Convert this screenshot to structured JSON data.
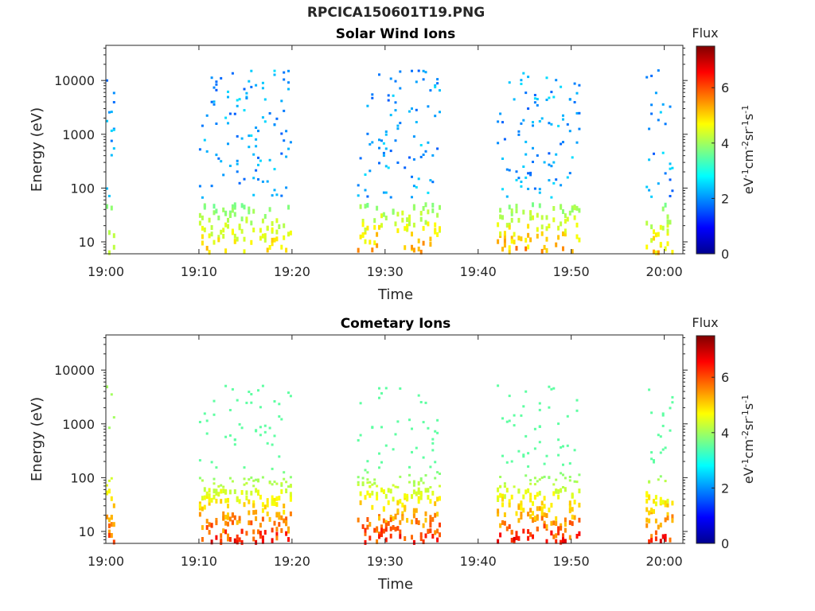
{
  "figure": {
    "title": "RPCICA150601T19.PNG"
  },
  "colors": {
    "axis": "#262626",
    "background": "#ffffff",
    "colormap": "jet"
  },
  "chart_data": [
    {
      "type": "heatmap",
      "title": "Solar Wind Ions",
      "xlabel": "Time",
      "ylabel": "Energy (eV)",
      "x_ticks": [
        "19:00",
        "19:10",
        "19:20",
        "19:30",
        "19:40",
        "19:50",
        "20:00"
      ],
      "x_range": [
        "19:00",
        "20:02"
      ],
      "y_scale": "log",
      "y_ticks": [
        10,
        100,
        1000,
        10000
      ],
      "y_range": [
        6,
        45000
      ],
      "colorbar": {
        "label": "Flux",
        "units": "eV-1 cm-2 sr-1 s-1",
        "ticks": [
          0,
          2,
          4,
          6
        ],
        "range": [
          0,
          7.5
        ]
      },
      "blocks": [
        {
          "start": "19:00",
          "end": "19:01",
          "low_flux": 3.5,
          "peak_flux": 4.5
        },
        {
          "start": "19:10",
          "end": "19:20",
          "low_flux": 3.0,
          "peak_flux": 5.5
        },
        {
          "start": "19:27",
          "end": "19:36",
          "low_flux": 3.0,
          "peak_flux": 6.0
        },
        {
          "start": "19:42",
          "end": "19:51",
          "low_flux": 3.0,
          "peak_flux": 6.0
        },
        {
          "start": "19:58",
          "end": "20:01",
          "low_flux": 3.0,
          "peak_flux": 5.5
        }
      ]
    },
    {
      "type": "heatmap",
      "title": "Cometary Ions",
      "xlabel": "Time",
      "ylabel": "Energy (eV)",
      "x_ticks": [
        "19:00",
        "19:10",
        "19:20",
        "19:30",
        "19:40",
        "19:50",
        "20:00"
      ],
      "x_range": [
        "19:00",
        "20:02"
      ],
      "y_scale": "log",
      "y_ticks": [
        10,
        100,
        1000,
        10000
      ],
      "y_range": [
        6,
        45000
      ],
      "colorbar": {
        "label": "Flux",
        "units": "eV-1 cm-2 sr-1 s-1",
        "ticks": [
          0,
          2,
          4,
          6
        ],
        "range": [
          0,
          7.5
        ]
      },
      "blocks": [
        {
          "start": "19:00",
          "end": "19:01",
          "low_flux": 4.0,
          "peak_flux": 6.5
        },
        {
          "start": "19:10",
          "end": "19:20",
          "low_flux": 3.5,
          "peak_flux": 7.0
        },
        {
          "start": "19:27",
          "end": "19:36",
          "low_flux": 3.5,
          "peak_flux": 7.0
        },
        {
          "start": "19:42",
          "end": "19:51",
          "low_flux": 3.5,
          "peak_flux": 7.0
        },
        {
          "start": "19:58",
          "end": "20:01",
          "low_flux": 3.5,
          "peak_flux": 7.0
        }
      ]
    }
  ]
}
